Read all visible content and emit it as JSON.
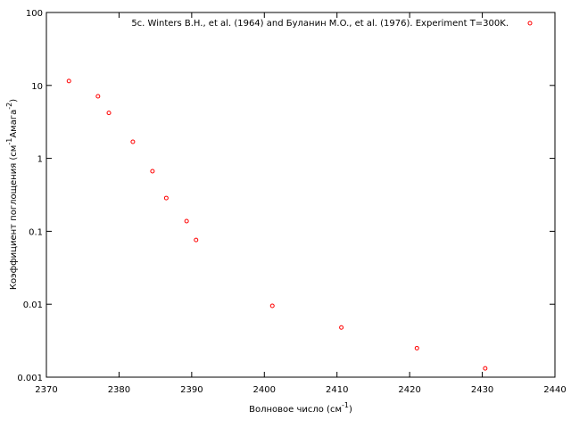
{
  "chart_data": {
    "type": "scatter",
    "xlabel": [
      "Волновое число (см",
      "-1",
      ")"
    ],
    "ylabel": [
      "Коэффициент поглощения (см",
      "-1",
      "Амага",
      "-2",
      ")"
    ],
    "xlim": [
      2370,
      2440
    ],
    "xticks": [
      2370,
      2380,
      2390,
      2400,
      2410,
      2420,
      2430,
      2440
    ],
    "ylim": [
      0.001,
      100
    ],
    "yticks": [
      0.001,
      0.01,
      0.1,
      1,
      10,
      100
    ],
    "log_y": true,
    "legend": "top-right",
    "series": [
      {
        "name": "5c. Winters B.H., et al. (1964) and Буланин М.O., et al. (1976). Experiment T=300K.",
        "color": "#ff0000",
        "x": [
          2373.1,
          2377.1,
          2378.6,
          2381.9,
          2384.6,
          2386.5,
          2389.3,
          2390.6,
          2401.1,
          2410.6,
          2421.0,
          2430.4
        ],
        "values": [
          11.5,
          7.1,
          4.2,
          1.69,
          0.667,
          0.286,
          0.138,
          0.076,
          0.0095,
          0.0048,
          0.0025,
          0.00132
        ]
      }
    ]
  }
}
